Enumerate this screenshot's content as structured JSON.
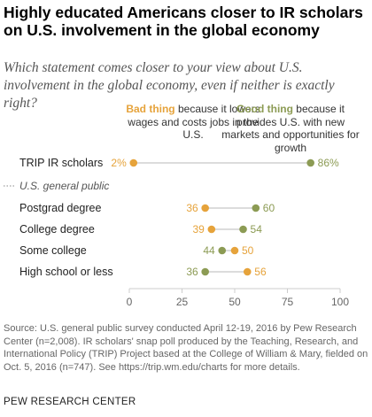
{
  "header": {
    "title": "Highly educated Americans closer to IR scholars on U.S. involvement in the global economy",
    "subtitle": "Which statement comes closer to your view about U.S. involvement in the global economy, even if neither is exactly right?"
  },
  "legend": {
    "bad": {
      "emphasis": "Bad thing",
      "rest": " because it lowers wages and costs jobs in the U.S."
    },
    "good": {
      "emphasis": "Good thing",
      "rest": " because it provides U.S. with new markets and opportunities for growth"
    }
  },
  "group_label": "U.S. general public",
  "footer": {
    "source": "Source: U.S. general public survey conducted April 12-19, 2016 by Pew Research Center (n=2,008). IR scholars' snap poll produced by the Teaching, Research, and International Policy (TRIP) Project based at the College of William & Mary, fielded on Oct. 5, 2016 (n=747). See https://trip.wm.edu/charts for more details.",
    "org": "PEW RESEARCH CENTER"
  },
  "colors": {
    "bad": "#e6a33b",
    "good": "#8c9b54"
  },
  "chart_data": {
    "type": "scatter",
    "categories": [
      "TRIP IR scholars",
      "Postgrad degree",
      "College degree",
      "Some college",
      "High school or less"
    ],
    "series": [
      {
        "name": "Bad thing",
        "values": [
          2,
          36,
          39,
          50,
          56
        ],
        "labels": [
          "2%",
          "36",
          "39",
          "50",
          "56"
        ]
      },
      {
        "name": "Good thing",
        "values": [
          86,
          60,
          54,
          44,
          36
        ],
        "labels": [
          "86%",
          "60",
          "54",
          "44",
          "36"
        ]
      }
    ],
    "x_ticks": [
      "0",
      "25",
      "50",
      "75",
      "100"
    ],
    "xlim": [
      0,
      100
    ],
    "grid": false
  }
}
